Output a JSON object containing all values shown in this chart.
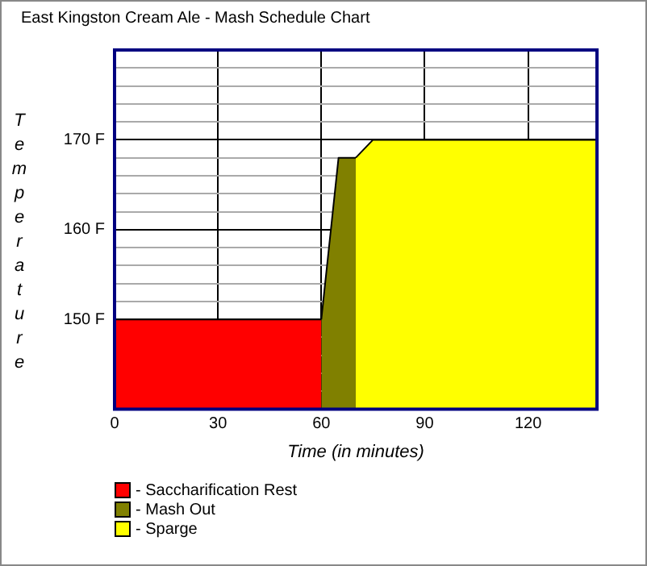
{
  "chart_data": {
    "type": "area",
    "title": "East Kingston Cream Ale - Mash Schedule Chart",
    "xlabel": "Time (in minutes)",
    "ylabel": "Temperature",
    "series": [
      {
        "name": "- Saccharification Rest",
        "color": "#ff0000",
        "x": [
          0,
          60
        ],
        "values": [
          150,
          150
        ]
      },
      {
        "name": "- Mash Out",
        "color": "#808000",
        "x": [
          60,
          65,
          70
        ],
        "values": [
          150,
          168,
          168
        ]
      },
      {
        "name": "- Sparge",
        "color": "#ffff00",
        "x": [
          70,
          75,
          140
        ],
        "values": [
          168,
          170,
          170
        ]
      }
    ],
    "xlim": [
      0,
      140
    ],
    "xticks": [
      0,
      30,
      60,
      90,
      120
    ],
    "ylim": [
      140,
      180
    ],
    "yticks": [
      {
        "value": 142,
        "label": null
      },
      {
        "value": 144,
        "label": null
      },
      {
        "value": 146,
        "label": null
      },
      {
        "value": 148,
        "label": null
      },
      {
        "value": 150,
        "label": "150 F"
      },
      {
        "value": 152,
        "label": null
      },
      {
        "value": 154,
        "label": null
      },
      {
        "value": 156,
        "label": null
      },
      {
        "value": 158,
        "label": null
      },
      {
        "value": 160,
        "label": "160 F"
      },
      {
        "value": 162,
        "label": null
      },
      {
        "value": 164,
        "label": null
      },
      {
        "value": 166,
        "label": null
      },
      {
        "value": 168,
        "label": null
      },
      {
        "value": 170,
        "label": "170 F"
      },
      {
        "value": 172,
        "label": null
      },
      {
        "value": 174,
        "label": null
      },
      {
        "value": 176,
        "label": null
      },
      {
        "value": 178,
        "label": null
      }
    ],
    "grid": true,
    "legend": "bottom left"
  }
}
